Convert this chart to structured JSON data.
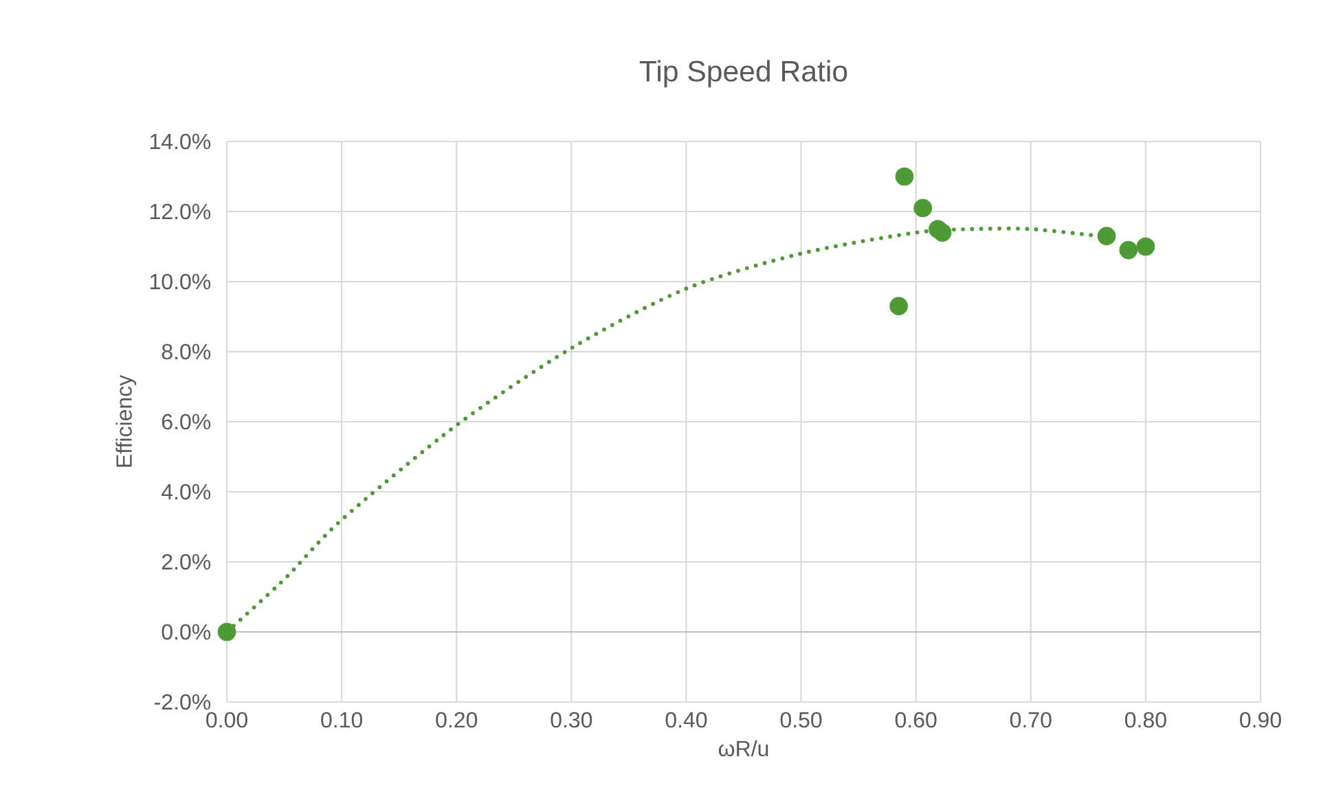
{
  "chart_data": {
    "type": "scatter",
    "title": "Tip Speed Ratio",
    "xlabel": "ωR/u",
    "ylabel": "Efficiency",
    "xlim": [
      0,
      0.9
    ],
    "xticks": [
      {
        "value": 0,
        "label": "0.00"
      },
      {
        "value": 0.1,
        "label": "0.10"
      },
      {
        "value": 0.2,
        "label": "0.20"
      },
      {
        "value": 0.3,
        "label": "0.30"
      },
      {
        "value": 0.4,
        "label": "0.40"
      },
      {
        "value": 0.5,
        "label": "0.50"
      },
      {
        "value": 0.6,
        "label": "0.60"
      },
      {
        "value": 0.7,
        "label": "0.70"
      },
      {
        "value": 0.8,
        "label": "0.80"
      },
      {
        "value": 0.9,
        "label": "0.90"
      }
    ],
    "ylim": [
      -2,
      14
    ],
    "yticks": [
      {
        "value": -2,
        "label": "-2.0%"
      },
      {
        "value": 0,
        "label": "0.0%"
      },
      {
        "value": 2,
        "label": "2.0%"
      },
      {
        "value": 4,
        "label": "4.0%"
      },
      {
        "value": 6,
        "label": "6.0%"
      },
      {
        "value": 8,
        "label": "8.0%"
      },
      {
        "value": 10,
        "label": "10.0%"
      },
      {
        "value": 12,
        "label": "12.0%"
      },
      {
        "value": 14,
        "label": "14.0%"
      }
    ],
    "grid": true,
    "series": [
      {
        "type": "line",
        "color": "#4e9a35",
        "line_style": "dotted",
        "x": [
          0,
          0.05,
          0.1,
          0.2,
          0.3,
          0.4,
          0.5,
          0.6,
          0.65,
          0.7,
          0.76
        ],
        "values": [
          0,
          1.5,
          3.2,
          5.9,
          8.1,
          9.8,
          10.8,
          11.4,
          11.5,
          11.5,
          11.3
        ]
      },
      {
        "color": "#4e9a35",
        "marker": "circle",
        "x": [
          0,
          0.585,
          0.59,
          0.606,
          0.619,
          0.623,
          0.766,
          0.785,
          0.8
        ],
        "values": [
          0,
          9.3,
          13.0,
          12.1,
          11.5,
          11.4,
          11.3,
          10.9,
          11.0
        ]
      }
    ]
  }
}
